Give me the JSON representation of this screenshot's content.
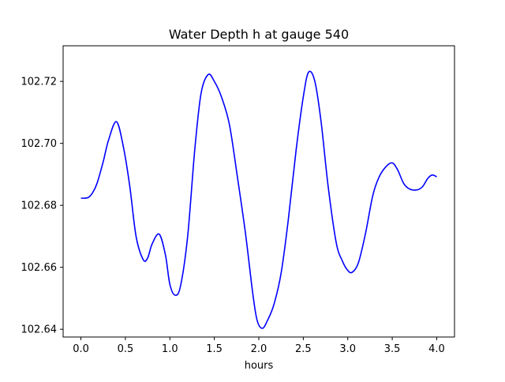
{
  "chart_data": {
    "type": "line",
    "title": "Water Depth h at gauge 540",
    "xlabel": "hours",
    "ylabel": "",
    "xlim": [
      -0.2,
      4.2
    ],
    "ylim": [
      102.6375,
      102.7315
    ],
    "xticks": [
      0.0,
      0.5,
      1.0,
      1.5,
      2.0,
      2.5,
      3.0,
      3.5,
      4.0
    ],
    "xtick_labels": [
      "0.0",
      "0.5",
      "1.0",
      "1.5",
      "2.0",
      "2.5",
      "3.0",
      "3.5",
      "4.0"
    ],
    "yticks": [
      102.64,
      102.66,
      102.68,
      102.7,
      102.72
    ],
    "ytick_labels": [
      "102.64",
      "102.66",
      "102.68",
      "102.70",
      "102.72"
    ],
    "grid": false,
    "legend": false,
    "series": [
      {
        "color": "#0000ff",
        "points": [
          [
            0.0,
            102.6823
          ],
          [
            0.08,
            102.6825
          ],
          [
            0.13,
            102.684
          ],
          [
            0.18,
            102.687
          ],
          [
            0.25,
            102.694
          ],
          [
            0.31,
            102.701
          ],
          [
            0.4,
            102.707
          ],
          [
            0.48,
            102.6985
          ],
          [
            0.55,
            102.686
          ],
          [
            0.62,
            102.67
          ],
          [
            0.7,
            102.6625
          ],
          [
            0.75,
            102.663
          ],
          [
            0.8,
            102.6675
          ],
          [
            0.88,
            102.6707
          ],
          [
            0.95,
            102.664
          ],
          [
            1.0,
            102.6545
          ],
          [
            1.06,
            102.651
          ],
          [
            1.12,
            102.654
          ],
          [
            1.2,
            102.67
          ],
          [
            1.28,
            102.698
          ],
          [
            1.35,
            102.716
          ],
          [
            1.43,
            102.7222
          ],
          [
            1.5,
            102.72
          ],
          [
            1.58,
            102.715
          ],
          [
            1.67,
            102.706
          ],
          [
            1.76,
            102.689
          ],
          [
            1.85,
            102.671
          ],
          [
            1.93,
            102.652
          ],
          [
            1.98,
            102.643
          ],
          [
            2.04,
            102.6403
          ],
          [
            2.1,
            102.643
          ],
          [
            2.17,
            102.648
          ],
          [
            2.25,
            102.658
          ],
          [
            2.33,
            102.675
          ],
          [
            2.42,
            102.698
          ],
          [
            2.5,
            102.715
          ],
          [
            2.56,
            102.723
          ],
          [
            2.63,
            102.72
          ],
          [
            2.7,
            102.707
          ],
          [
            2.78,
            102.686
          ],
          [
            2.87,
            102.668
          ],
          [
            2.94,
            102.662
          ],
          [
            3.0,
            102.659
          ],
          [
            3.05,
            102.6584
          ],
          [
            3.12,
            102.6615
          ],
          [
            3.2,
            102.671
          ],
          [
            3.28,
            102.683
          ],
          [
            3.35,
            102.689
          ],
          [
            3.43,
            102.6925
          ],
          [
            3.5,
            102.6937
          ],
          [
            3.56,
            102.6915
          ],
          [
            3.63,
            102.687
          ],
          [
            3.7,
            102.6852
          ],
          [
            3.78,
            102.685
          ],
          [
            3.84,
            102.686
          ],
          [
            3.9,
            102.6887
          ],
          [
            3.95,
            102.6898
          ],
          [
            4.0,
            102.6892
          ]
        ]
      }
    ]
  }
}
